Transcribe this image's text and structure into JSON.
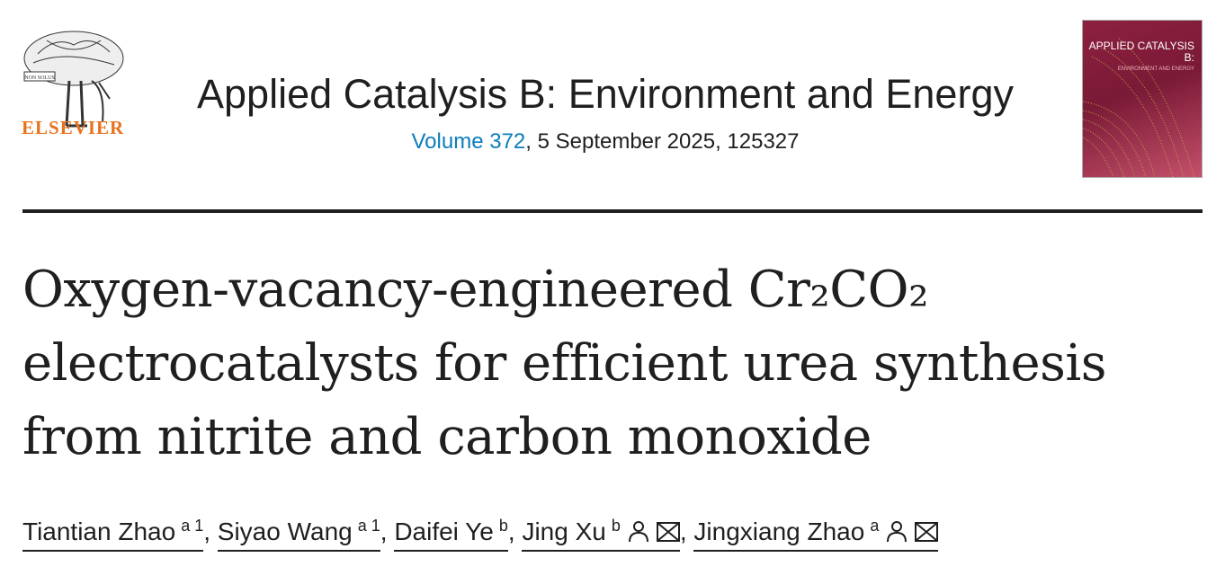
{
  "publisher": {
    "name": "ELSEVIER",
    "logo_motto": "NON SOLUS",
    "accent": "#e9711c"
  },
  "journal": {
    "title": "Applied Catalysis B: Environment and Energy",
    "volume_label": "Volume 372",
    "issue_info": ", 5 September 2025, 125327",
    "link_color": "#0c7dbb"
  },
  "cover": {
    "title": "APPLIED CATALYSIS B:",
    "subtitle": "ENVIRONMENT AND ENERGY"
  },
  "article": {
    "title_line1": "Oxygen-vacancy-engineered Cr₂CO₂",
    "title_line2": "electrocatalysts for efficient urea synthesis",
    "title_line3": "from nitrite and carbon monoxide"
  },
  "authors": [
    {
      "name": "Tiantian Zhao",
      "sup": "a 1"
    },
    {
      "name": "Siyao Wang",
      "sup": "a 1"
    },
    {
      "name": "Daifei Ye",
      "sup": "b"
    },
    {
      "name": "Jing Xu",
      "sup": "b",
      "icons": [
        "person-icon",
        "email-icon"
      ]
    },
    {
      "name": "Jingxiang Zhao",
      "sup": "a",
      "icons": [
        "person-icon",
        "email-icon"
      ]
    }
  ],
  "separator": ","
}
